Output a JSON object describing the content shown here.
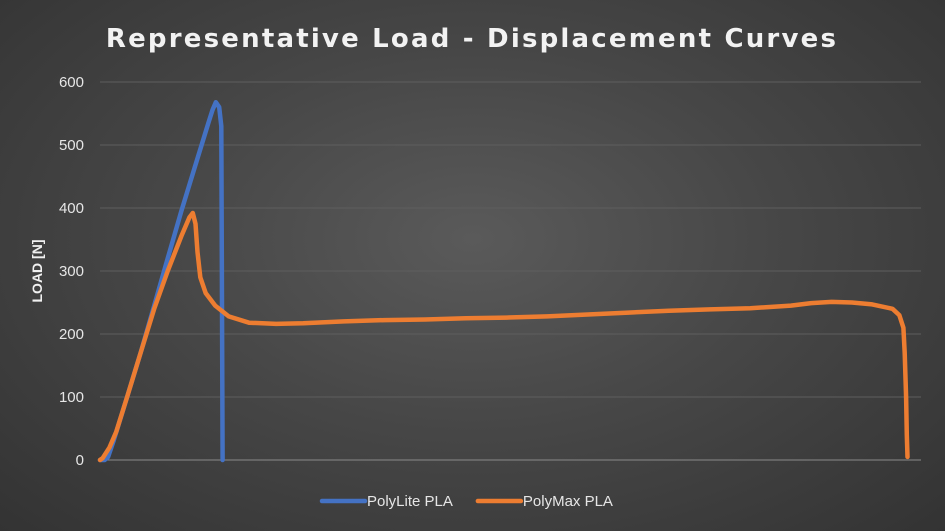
{
  "chart_data": {
    "type": "line",
    "title": "Representative Load - Displacement Curves",
    "xlabel": "",
    "ylabel": "LOAD [N]",
    "ylim": [
      0,
      600
    ],
    "yticks": [
      0,
      100,
      200,
      300,
      400,
      500,
      600
    ],
    "x_tick_labels_shown": false,
    "grid": true,
    "legend": "bottom",
    "series": [
      {
        "name": "PolyLite PLA",
        "color": "#4472C4",
        "points": [
          [
            0.0,
            0
          ],
          [
            0.35,
            0
          ],
          [
            0.6,
            5
          ],
          [
            1.0,
            30
          ],
          [
            2.0,
            100
          ],
          [
            3.0,
            170
          ],
          [
            4.0,
            245
          ],
          [
            5.0,
            320
          ],
          [
            6.0,
            395
          ],
          [
            7.0,
            465
          ],
          [
            8.0,
            535
          ],
          [
            8.3,
            555
          ],
          [
            8.55,
            568
          ],
          [
            8.8,
            560
          ],
          [
            8.95,
            530
          ],
          [
            9.05,
            0
          ]
        ]
      },
      {
        "name": "PolyMax PLA",
        "color": "#ED7D31",
        "points": [
          [
            0.0,
            0
          ],
          [
            0.2,
            3
          ],
          [
            0.7,
            20
          ],
          [
            1.2,
            45
          ],
          [
            2.0,
            100
          ],
          [
            3.0,
            170
          ],
          [
            4.0,
            240
          ],
          [
            5.0,
            300
          ],
          [
            6.0,
            355
          ],
          [
            6.6,
            385
          ],
          [
            6.85,
            392
          ],
          [
            7.05,
            375
          ],
          [
            7.2,
            330
          ],
          [
            7.4,
            290
          ],
          [
            7.8,
            265
          ],
          [
            8.5,
            245
          ],
          [
            9.5,
            228
          ],
          [
            11.0,
            218
          ],
          [
            13.0,
            216
          ],
          [
            15.0,
            217
          ],
          [
            18.0,
            220
          ],
          [
            21.0,
            222
          ],
          [
            24.0,
            223
          ],
          [
            27.0,
            225
          ],
          [
            30.0,
            226
          ],
          [
            33.0,
            228
          ],
          [
            36.0,
            231
          ],
          [
            39.0,
            234
          ],
          [
            42.0,
            237
          ],
          [
            45.0,
            239
          ],
          [
            48.0,
            241
          ],
          [
            51.0,
            245
          ],
          [
            52.5,
            249
          ],
          [
            54.0,
            251
          ],
          [
            55.5,
            250
          ],
          [
            57.0,
            247
          ],
          [
            58.5,
            240
          ],
          [
            59.0,
            230
          ],
          [
            59.3,
            210
          ],
          [
            59.4,
            170
          ],
          [
            59.5,
            100
          ],
          [
            59.55,
            40
          ],
          [
            59.6,
            5
          ]
        ]
      }
    ]
  }
}
